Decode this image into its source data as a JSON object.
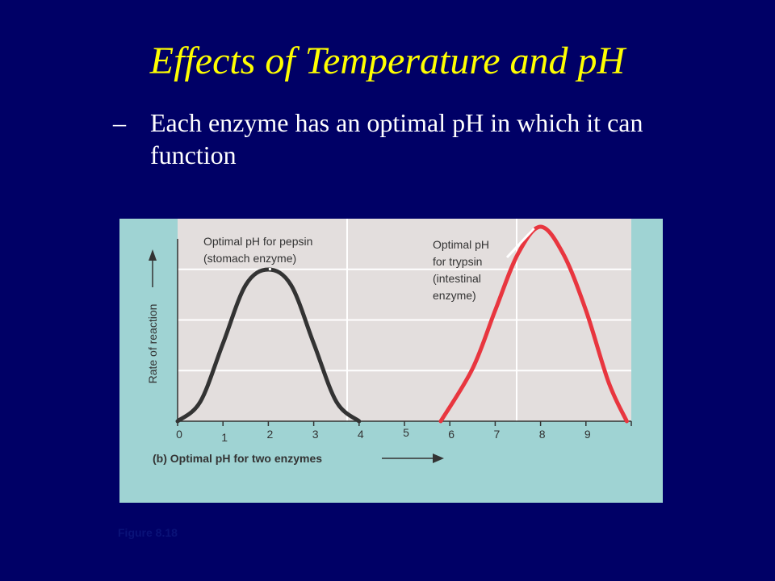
{
  "slide": {
    "title": "Effects of Temperature and pH",
    "bullet_marker": "–",
    "bullet_text": "Each enzyme has an optimal pH in which it can function",
    "figure_caption": "Figure 8.18"
  },
  "colors": {
    "background": "#000066",
    "title": "#ffff00",
    "bullet": "#ffffff",
    "panel": "#9fd3d3",
    "plot_bg": "#e3dedd",
    "pepsin_curve": "#333333",
    "trypsin_curve": "#e8363f"
  },
  "chart_data": {
    "type": "line",
    "title": "(b) Optimal pH for two enzymes",
    "xlabel": "",
    "ylabel": "Rate of reaction",
    "xlim": [
      0,
      10
    ],
    "ylim": [
      0,
      1
    ],
    "x_ticks": [
      0,
      1,
      2,
      3,
      4,
      5,
      6,
      7,
      8,
      9
    ],
    "grid": true,
    "series": [
      {
        "name": "pepsin",
        "color": "#333333",
        "x": [
          0,
          0.5,
          1,
          1.5,
          2,
          2.5,
          3,
          3.5,
          4
        ],
        "y": [
          0,
          0.1,
          0.4,
          0.7,
          0.78,
          0.7,
          0.4,
          0.1,
          0
        ]
      },
      {
        "name": "trypsin",
        "color": "#e8363f",
        "x": [
          5.8,
          6.5,
          7,
          7.5,
          8,
          8.5,
          9,
          9.5,
          9.9
        ],
        "y": [
          0,
          0.27,
          0.57,
          0.86,
          1.0,
          0.86,
          0.57,
          0.2,
          0
        ]
      }
    ],
    "annotations": [
      {
        "lines": [
          "Optimal pH for pepsin",
          "(stomach enzyme)"
        ],
        "x": 2,
        "y": 0.78
      },
      {
        "lines": [
          "Optimal pH",
          "for trypsin",
          "(intestinal",
          "enzyme)"
        ],
        "x": 8,
        "y": 1.0
      }
    ]
  }
}
